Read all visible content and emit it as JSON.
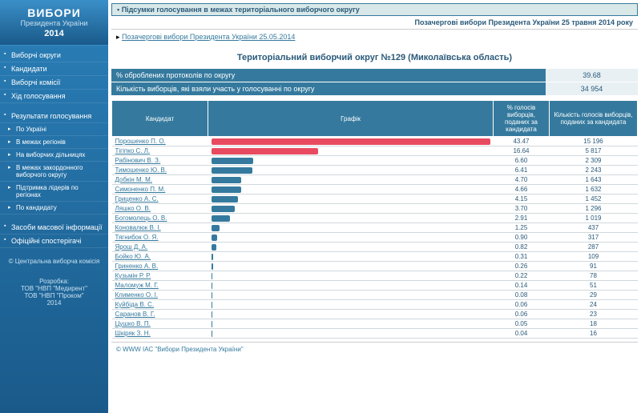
{
  "logo": {
    "title": "ВИБОРИ",
    "sub": "Президента України",
    "year": "2014"
  },
  "nav": {
    "items": [
      "Виборчі округи",
      "Кандидати",
      "Виборчі комісії",
      "Хід голосування"
    ],
    "results_heading": "Результати голосування",
    "results_items": [
      "По Україні",
      "В межах регіонів",
      "На виборчих дільницях",
      "В межах закордонного виборчого округу",
      "Підтримка лідерів по регіонах",
      "По кандидату"
    ],
    "other_items": [
      "Засоби масової інформації",
      "Офіційні спостерігачі"
    ],
    "copyright": "© Центральна виборча комісія",
    "dev_label": "Розробка:",
    "dev1": "ТОВ \"НВП \"Медирент\"",
    "dev2": "ТОВ \"НВП \"Проком\"",
    "dev_year": "2014"
  },
  "header": {
    "section": "Підсумки голосування в межах територіального виборчого округу",
    "election": "Позачергові вибори Президента України 25 травня 2014 року"
  },
  "breadcrumb": {
    "icon": "▸",
    "link": "Позачергові вибори Президента України 25.05.2014"
  },
  "district_title": "Територіальний виборчий округ №129 (Миколаївська область)",
  "summary": [
    {
      "label": "% оброблених протоколів по округу",
      "value": "39.68"
    },
    {
      "label": "Кількість виборців, які взяли участь у голосуванні по округу",
      "value": "34 954"
    }
  ],
  "columns": {
    "candidate": "Кандидат",
    "chart": "Графік",
    "pct": "% голосів виборців, поданих за кандидата",
    "votes": "Кількість голосів виборців, поданих за кандидата"
  },
  "chart": {
    "max_pct": 43.47,
    "bar_blue": "#357a9e",
    "bar_red": "#e84a5f",
    "bg": "#ffffff"
  },
  "results": [
    {
      "name": "Порошенко П. О.",
      "pct": 43.47,
      "votes": "15 196",
      "color": "red"
    },
    {
      "name": "Тігіпко С. Л.",
      "pct": 16.64,
      "votes": "5 817",
      "color": "red"
    },
    {
      "name": "Рабінович В. З.",
      "pct": 6.6,
      "votes": "2 309",
      "color": "blue"
    },
    {
      "name": "Тимошенко Ю. В.",
      "pct": 6.41,
      "votes": "2 243",
      "color": "blue"
    },
    {
      "name": "Добкін М. М.",
      "pct": 4.7,
      "votes": "1 643",
      "color": "blue"
    },
    {
      "name": "Симоненко П. М.",
      "pct": 4.66,
      "votes": "1 632",
      "color": "blue"
    },
    {
      "name": "Гриценко А. С.",
      "pct": 4.15,
      "votes": "1 452",
      "color": "blue"
    },
    {
      "name": "Ляшко О. В.",
      "pct": 3.7,
      "votes": "1 296",
      "color": "blue"
    },
    {
      "name": "Богомолець О. В.",
      "pct": 2.91,
      "votes": "1 019",
      "color": "blue"
    },
    {
      "name": "Коновалюк В. І.",
      "pct": 1.25,
      "votes": "437",
      "color": "blue"
    },
    {
      "name": "Тягнибок О. Я.",
      "pct": 0.9,
      "votes": "317",
      "color": "blue"
    },
    {
      "name": "Ярош Д. А.",
      "pct": 0.82,
      "votes": "287",
      "color": "blue"
    },
    {
      "name": "Бойко Ю. А.",
      "pct": 0.31,
      "votes": "109",
      "color": "blue"
    },
    {
      "name": "Гриненко А. В.",
      "pct": 0.26,
      "votes": "91",
      "color": "blue"
    },
    {
      "name": "Кузьмін Р. Р.",
      "pct": 0.22,
      "votes": "78",
      "color": "blue"
    },
    {
      "name": "Маломуж М. Г.",
      "pct": 0.14,
      "votes": "51",
      "color": "blue"
    },
    {
      "name": "Клименко О. І.",
      "pct": 0.08,
      "votes": "29",
      "color": "blue"
    },
    {
      "name": "Куйбіда В. С.",
      "pct": 0.06,
      "votes": "24",
      "color": "blue"
    },
    {
      "name": "Саранов В. Г.",
      "pct": 0.06,
      "votes": "23",
      "color": "blue"
    },
    {
      "name": "Цушко В. П.",
      "pct": 0.05,
      "votes": "18",
      "color": "blue"
    },
    {
      "name": "Шкіряк З. Н.",
      "pct": 0.04,
      "votes": "16",
      "color": "blue"
    }
  ],
  "footer": "© WWW ІАС \"Вибори Президента України\""
}
